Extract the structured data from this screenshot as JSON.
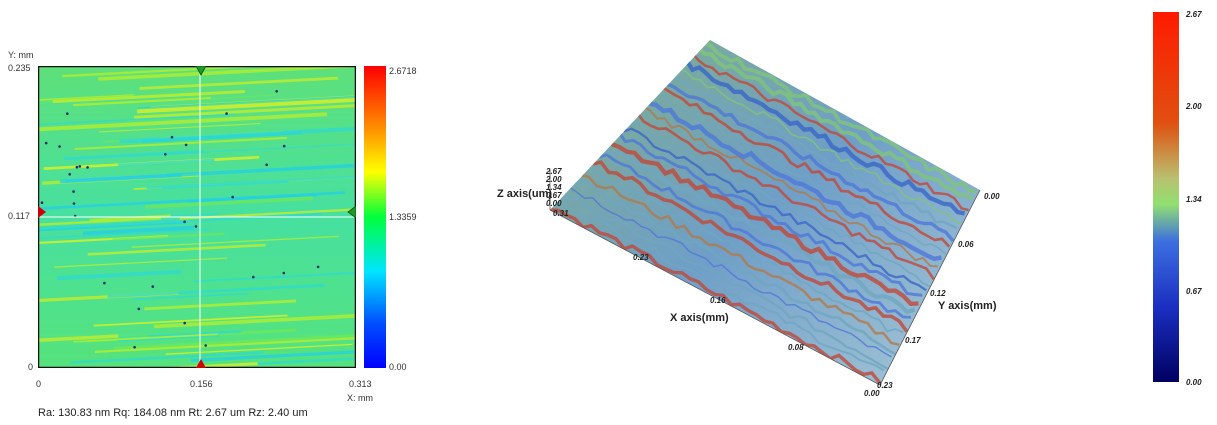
{
  "map2d": {
    "y_unit": "Y: mm",
    "x_unit": "X: mm",
    "y_ticks": [
      "0.235",
      "0.117",
      "0"
    ],
    "x_ticks": [
      "0",
      "0.156",
      "0.313"
    ],
    "colorbar_labels": [
      "2.6718",
      "1.3359",
      "0.00"
    ],
    "colorbar_colors": [
      "#ff0000",
      "#ff8a00",
      "#ffff00",
      "#00ff3c",
      "#00e5ff",
      "#0050ff",
      "#0000ff"
    ],
    "stats": "Ra: 130.83 nm   Rq: 184.08 nm   Rt: 2.67 um   Rz: 2.40 um"
  },
  "surface3d": {
    "z_axis_title": "Z axis(um)",
    "z_ticks": [
      "2.67",
      "2.00",
      "1.34",
      "0.67",
      "0.00"
    ],
    "x_axis_title": "X axis(mm)",
    "x_ticks": [
      "0.31",
      "0.23",
      "0.16",
      "0.08",
      "0.00"
    ],
    "y_axis_title": "Y axis(mm)",
    "y_ticks": [
      "0.00",
      "0.06",
      "0.12",
      "0.17",
      "0.23"
    ],
    "colors": [
      "#3a66c8",
      "#6fa6c0",
      "#7fc47a",
      "#b07a4a",
      "#c0483a"
    ]
  },
  "colorbar3d": {
    "labels": [
      "2.67",
      "2.00",
      "1.34",
      "0.67",
      "0.00"
    ],
    "colors": [
      "#ff1a00",
      "#e05010",
      "#b9c070",
      "#90e070",
      "#3d6fe0",
      "#1a2ec0",
      "#000060"
    ]
  }
}
